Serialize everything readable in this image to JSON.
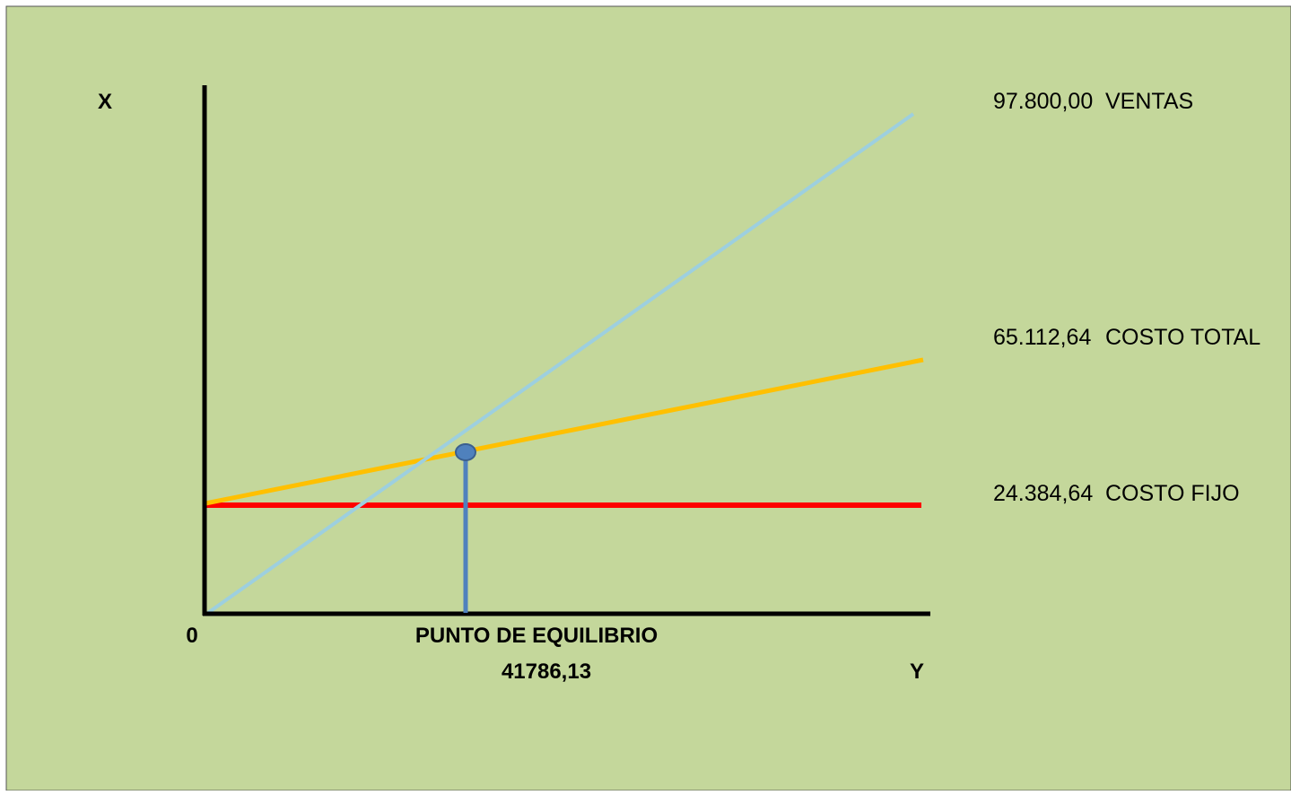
{
  "chart_data": {
    "type": "line",
    "title": "",
    "y_axis_label": "X",
    "x_axis_label": "Y",
    "origin_label": "0",
    "series": [
      {
        "name": "VENTAS",
        "value_label": "97.800,00",
        "color": "#9dcfdf"
      },
      {
        "name": "COSTO TOTAL",
        "value_label": "65.112,64",
        "color": "#ffc000"
      },
      {
        "name": "COSTO FIJO",
        "value_label": "24.384,64",
        "color": "#ff0000"
      }
    ],
    "break_even": {
      "label": "PUNTO DE EQUILIBRIO",
      "value": "41786,13",
      "color": "#4f81bd"
    },
    "grid": false,
    "legend": "right"
  },
  "colors": {
    "background": "#c4d79b",
    "axis": "#000000"
  }
}
